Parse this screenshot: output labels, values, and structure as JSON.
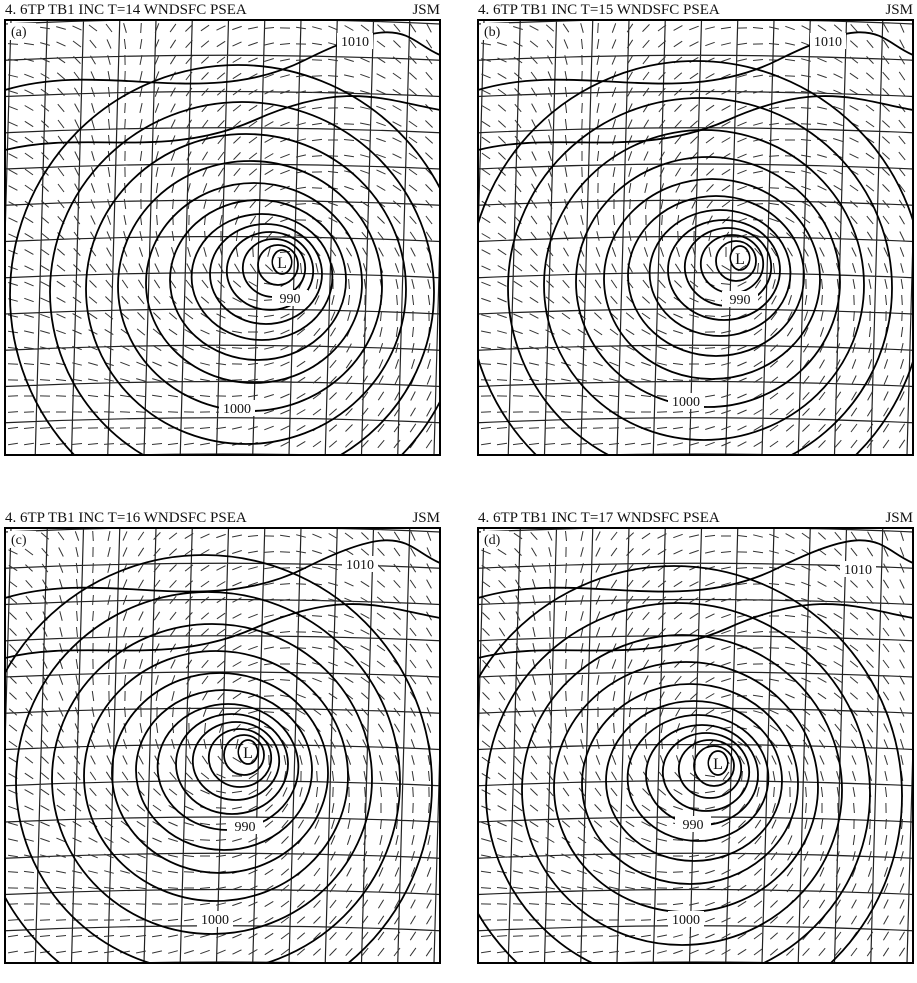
{
  "panels": [
    {
      "header": "4. 6TP TB1 INC T=14 WNDSFC PSEA",
      "source": "JSM",
      "label": "(a)",
      "low": "L",
      "contours": [
        "1010",
        "990",
        "1000"
      ]
    },
    {
      "header": "4. 6TP TB1 INC T=15 WNDSFC PSEA",
      "source": "JSM",
      "label": "(b)",
      "low": "L",
      "contours": [
        "1010",
        "990",
        "1000"
      ]
    },
    {
      "header": "4. 6TP TB1 INC T=16 WNDSFC PSEA",
      "source": "JSM",
      "label": "(c)",
      "low": "L",
      "contours": [
        "1010",
        "990",
        "1000"
      ]
    },
    {
      "header": "4. 6TP TB1 INC T=17 WNDSFC PSEA",
      "source": "JSM",
      "label": "(d)",
      "low": "L",
      "contours": [
        "1010",
        "990",
        "1000"
      ]
    }
  ]
}
